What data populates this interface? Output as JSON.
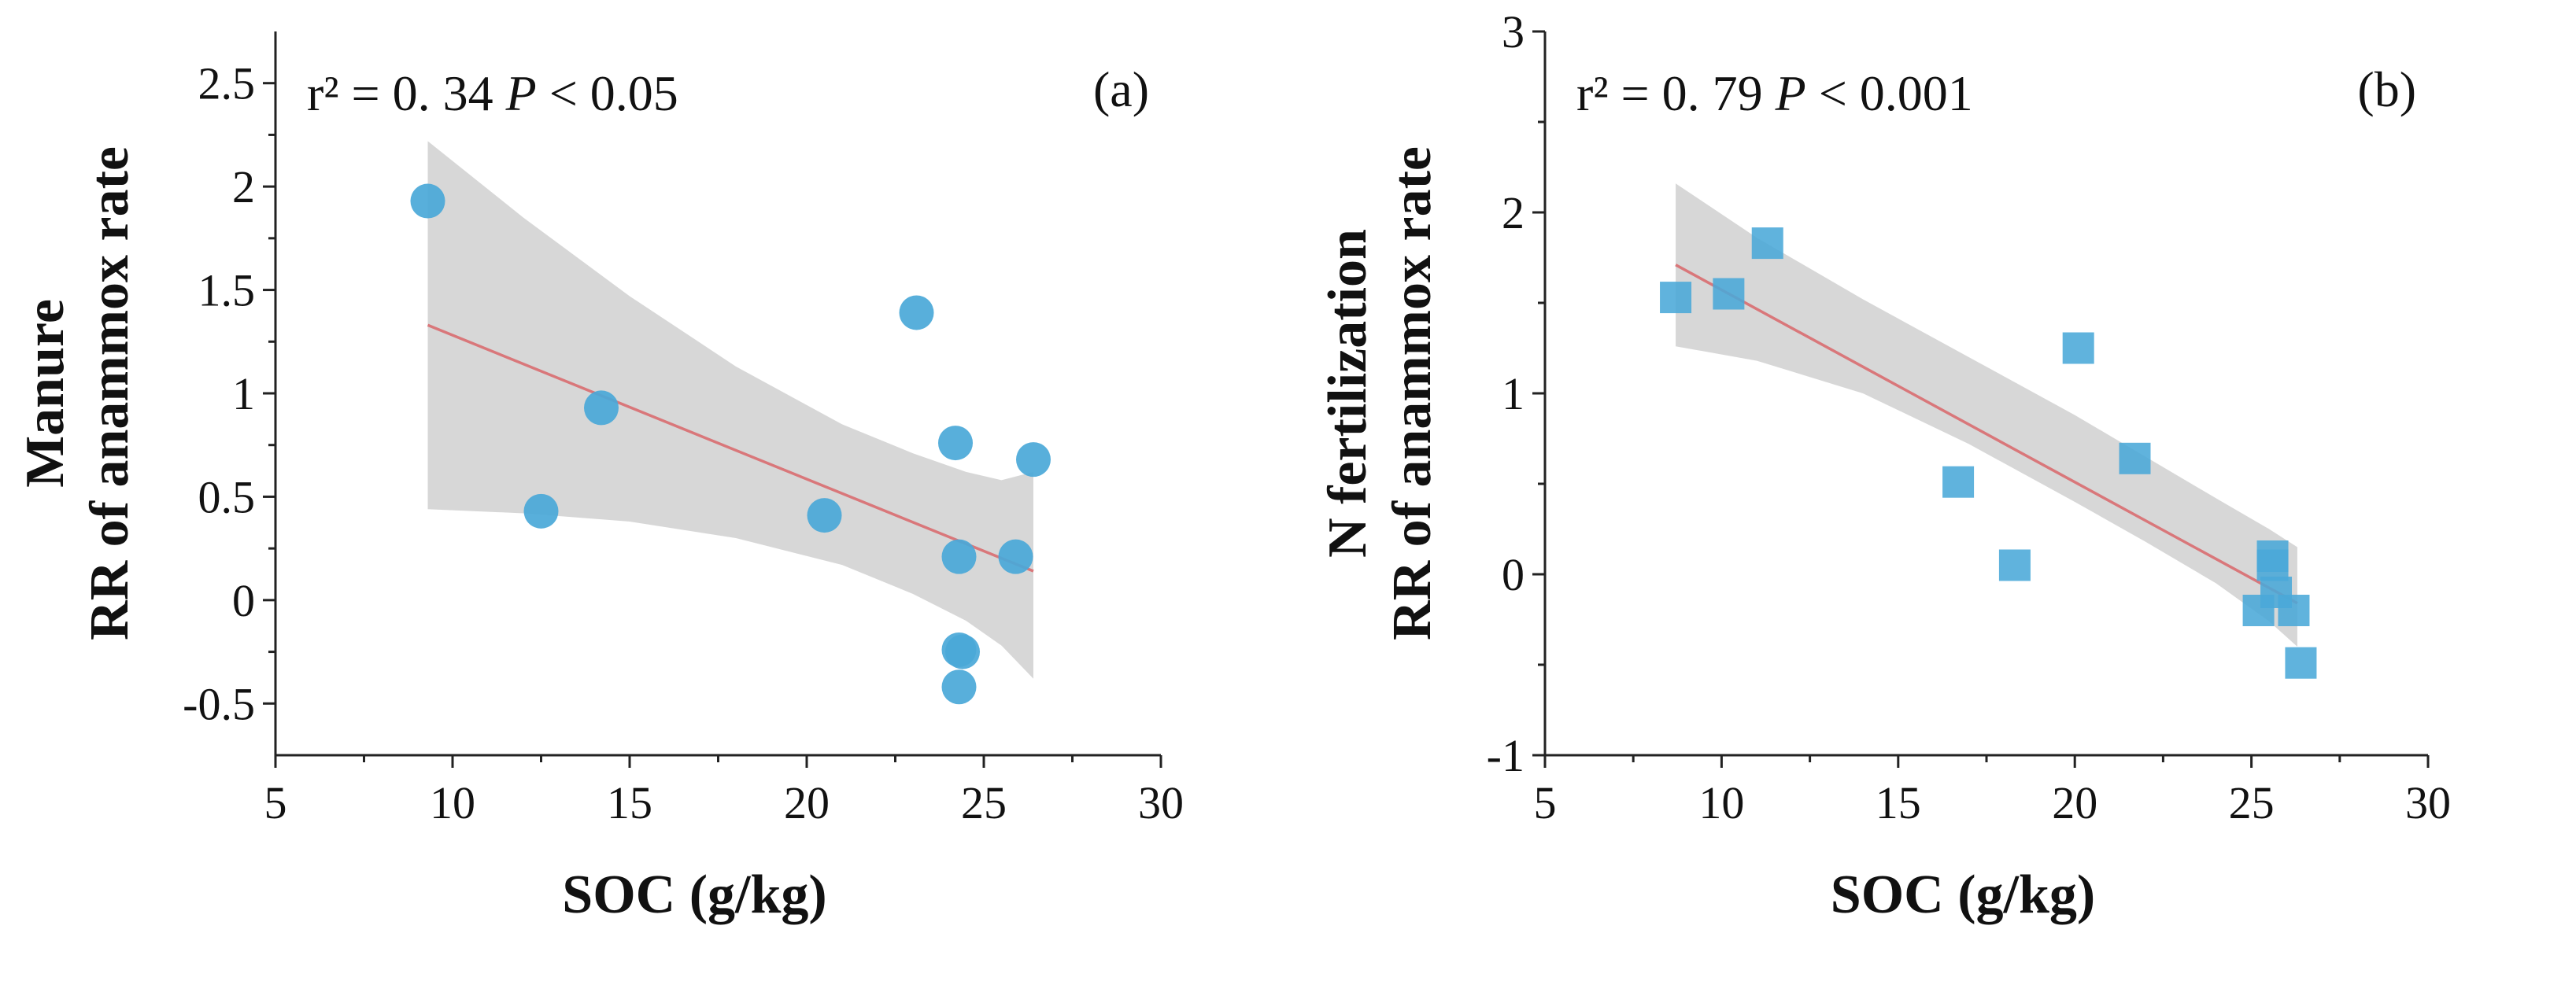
{
  "chart_data": [
    {
      "type": "scatter",
      "panel_label": "(a)",
      "annotation": {
        "r2_text": "r² = 0. 34 ",
        "p_symbol": "P",
        "p_text": " < 0.05"
      },
      "ylabel_line1": "Manure",
      "ylabel_line2": "RR of anammox rate",
      "xlabel": "SOC (g/kg)",
      "xlim": [
        5,
        30
      ],
      "ylim": [
        -0.75,
        2.75
      ],
      "xticks": [
        5,
        10,
        15,
        20,
        25,
        30
      ],
      "xtick_labels": [
        "5",
        "10",
        "15",
        "20",
        "25",
        "30"
      ],
      "yticks": [
        -0.5,
        0,
        0.5,
        1,
        1.5,
        2,
        2.5
      ],
      "ytick_labels": [
        "-0.5",
        "0",
        "0.5",
        "1",
        "1.5",
        "2",
        "2.5"
      ],
      "marker": "circle",
      "marker_color": "#4aa8d8",
      "points": [
        {
          "x": 9.3,
          "y": 1.93
        },
        {
          "x": 12.5,
          "y": 0.43
        },
        {
          "x": 14.2,
          "y": 0.93
        },
        {
          "x": 20.5,
          "y": 0.41
        },
        {
          "x": 23.1,
          "y": 1.39
        },
        {
          "x": 24.2,
          "y": 0.76
        },
        {
          "x": 24.3,
          "y": 0.21
        },
        {
          "x": 24.3,
          "y": -0.24
        },
        {
          "x": 24.4,
          "y": -0.25
        },
        {
          "x": 24.3,
          "y": -0.42
        },
        {
          "x": 25.9,
          "y": 0.21
        },
        {
          "x": 26.4,
          "y": 0.68
        }
      ],
      "fit_line": {
        "x": [
          9.3,
          26.4
        ],
        "y": [
          1.33,
          0.14
        ]
      },
      "confidence_band": {
        "x": [
          9.3,
          12,
          15,
          18,
          21,
          23,
          24.5,
          25.5,
          26.4
        ],
        "upper": [
          2.22,
          1.85,
          1.47,
          1.13,
          0.85,
          0.71,
          0.62,
          0.58,
          0.62
        ],
        "lower": [
          0.44,
          0.42,
          0.38,
          0.3,
          0.17,
          0.03,
          -0.1,
          -0.22,
          -0.38
        ]
      }
    },
    {
      "type": "scatter",
      "panel_label": "(b)",
      "annotation": {
        "r2_text": "r² = 0. 79 ",
        "p_symbol": "P",
        "p_text": " < 0.001"
      },
      "ylabel_line1": "N fertilization",
      "ylabel_line2": "RR of anammox rate",
      "xlabel": "SOC (g/kg)",
      "xlim": [
        5,
        30
      ],
      "ylim": [
        -1,
        3
      ],
      "xticks": [
        5,
        10,
        15,
        20,
        25,
        30
      ],
      "xtick_labels": [
        "5",
        "10",
        "15",
        "20",
        "25",
        "30"
      ],
      "yticks": [
        -1,
        0,
        1,
        2,
        3
      ],
      "ytick_labels": [
        "-1",
        "0",
        "1",
        "2",
        "3"
      ],
      "marker": "square",
      "marker_color": "#4aa8d8",
      "points": [
        {
          "x": 8.7,
          "y": 1.53
        },
        {
          "x": 10.2,
          "y": 1.55
        },
        {
          "x": 11.3,
          "y": 1.83
        },
        {
          "x": 16.7,
          "y": 0.51
        },
        {
          "x": 18.3,
          "y": 0.05
        },
        {
          "x": 20.1,
          "y": 1.25
        },
        {
          "x": 21.7,
          "y": 0.64
        },
        {
          "x": 25.2,
          "y": -0.2
        },
        {
          "x": 25.6,
          "y": 0.1
        },
        {
          "x": 25.6,
          "y": 0.05
        },
        {
          "x": 25.7,
          "y": -0.1
        },
        {
          "x": 26.2,
          "y": -0.2
        },
        {
          "x": 26.4,
          "y": -0.49
        }
      ],
      "fit_line": {
        "x": [
          8.7,
          26.3
        ],
        "y": [
          1.71,
          -0.16
        ]
      },
      "confidence_band": {
        "x": [
          8.7,
          11,
          14,
          17,
          20,
          22,
          24,
          25.5,
          26.3
        ],
        "upper": [
          2.16,
          1.86,
          1.52,
          1.2,
          0.88,
          0.65,
          0.42,
          0.25,
          0.15
        ],
        "lower": [
          1.26,
          1.18,
          1.0,
          0.72,
          0.4,
          0.18,
          -0.05,
          -0.26,
          -0.4
        ]
      }
    }
  ]
}
